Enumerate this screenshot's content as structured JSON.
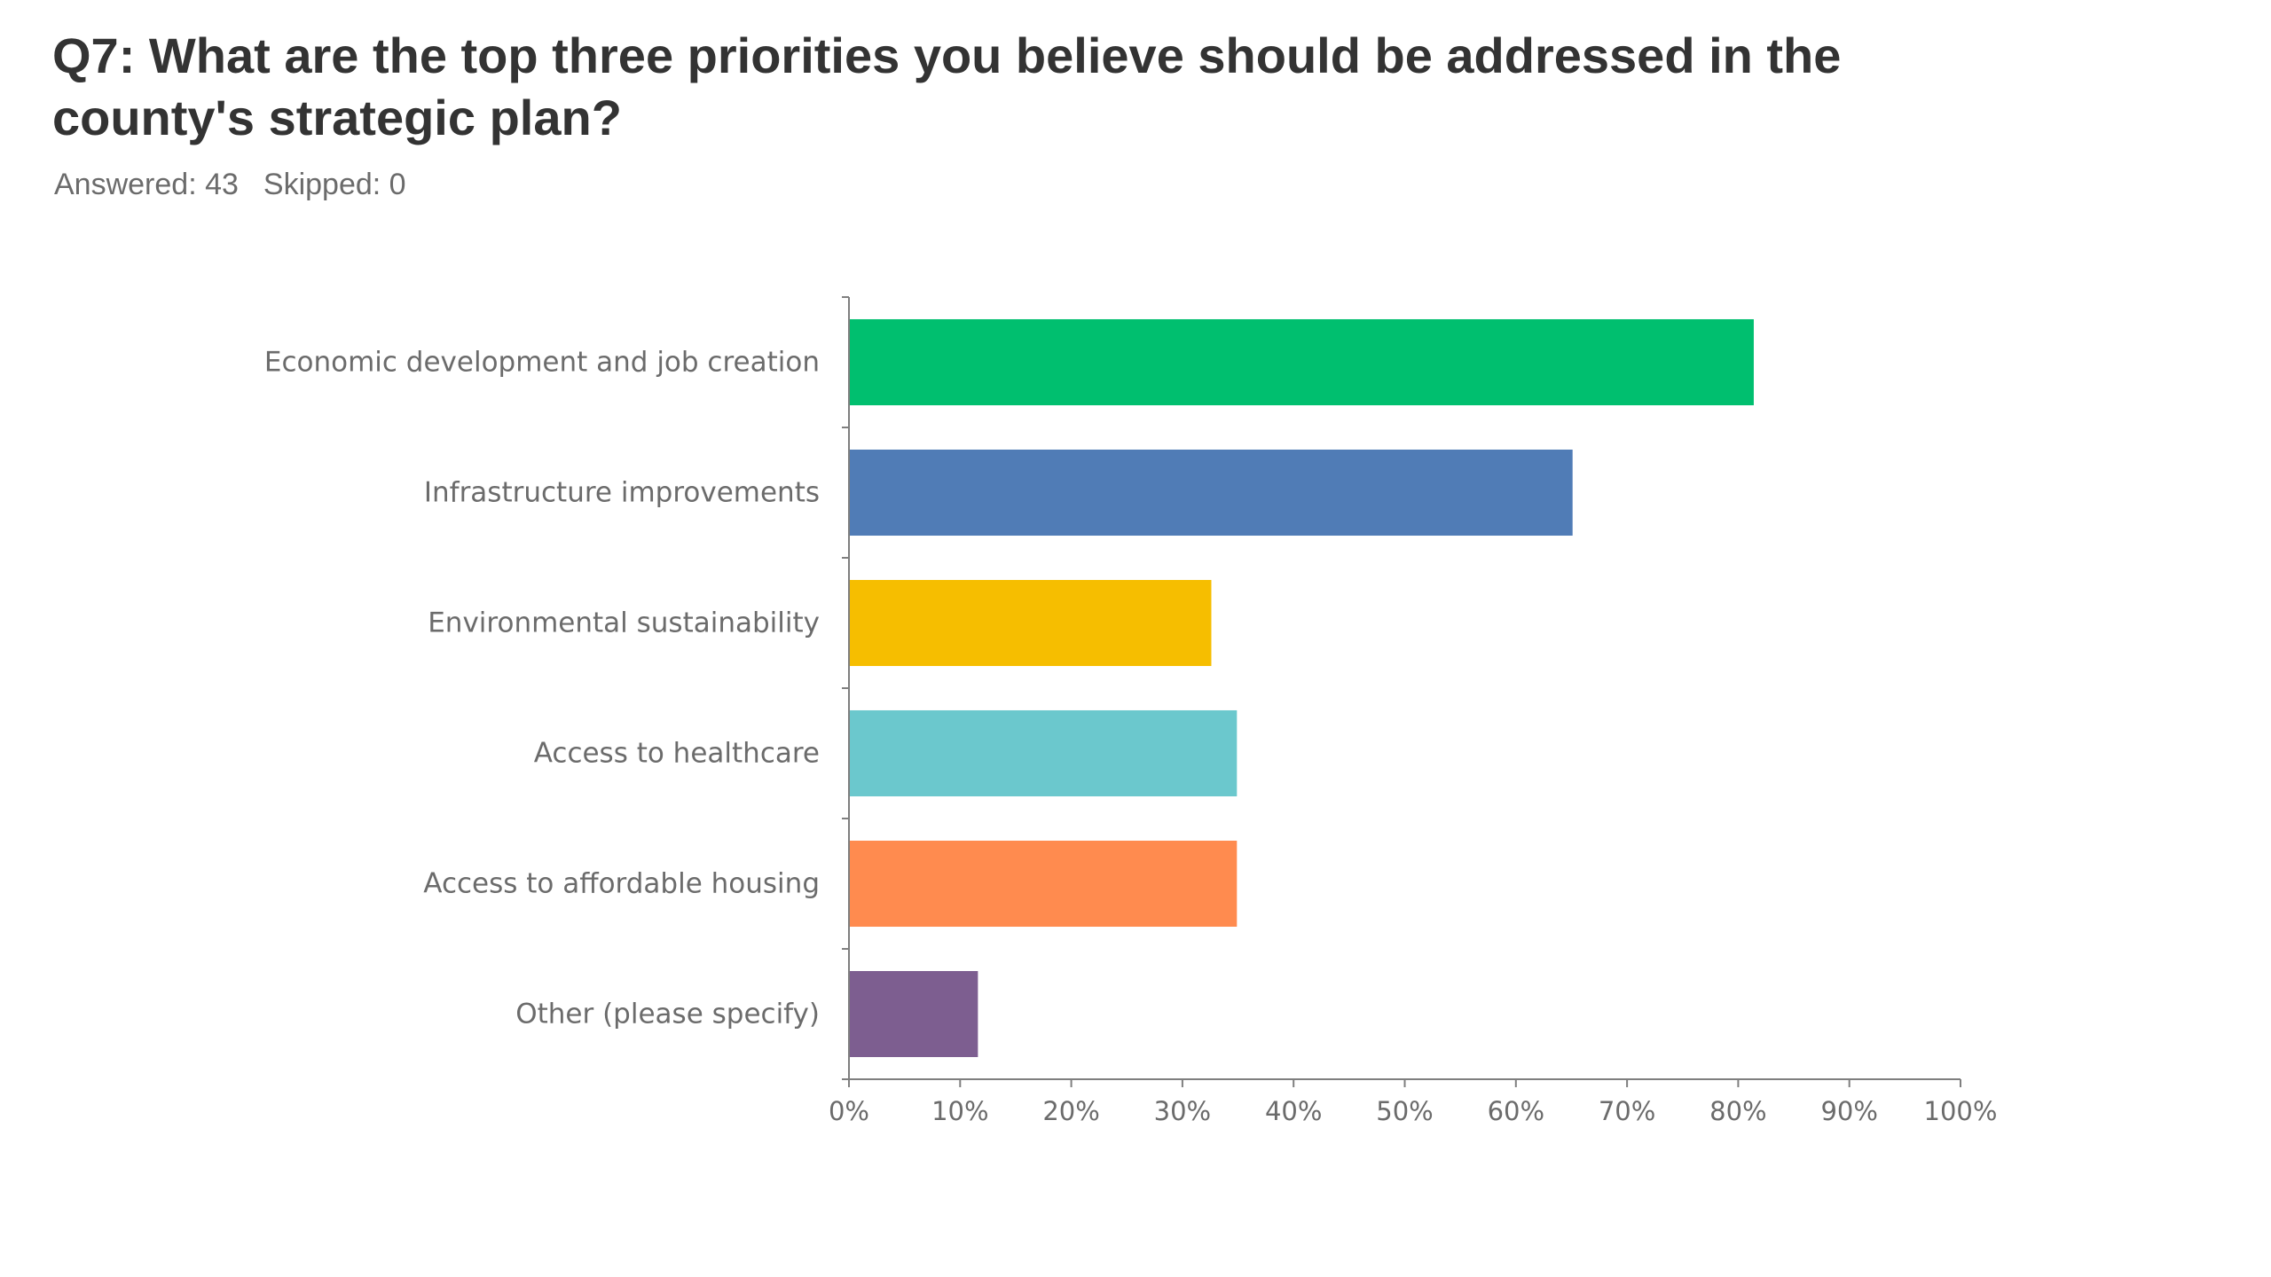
{
  "question": {
    "title": "Q7: What are the top three priorities you believe should be addressed in the county's strategic plan?",
    "answered_label": "Answered: 43",
    "skipped_label": "Skipped: 0"
  },
  "chart_data": {
    "type": "bar",
    "orientation": "horizontal",
    "categories": [
      "Economic development and job creation",
      "Infrastructure improvements",
      "Environmental sustainability",
      "Access to healthcare",
      "Access to affordable housing",
      "Other (please specify)"
    ],
    "values": [
      81.4,
      65.1,
      32.6,
      34.9,
      34.9,
      11.6
    ],
    "colors": [
      "#00bf6f",
      "#507cb6",
      "#f6be00",
      "#6bc8cd",
      "#ff8b4f",
      "#7d5e90"
    ],
    "xlim": [
      0,
      100
    ],
    "xticks": [
      "0%",
      "10%",
      "20%",
      "30%",
      "40%",
      "50%",
      "60%",
      "70%",
      "80%",
      "90%",
      "100%"
    ],
    "grid": false,
    "legend": "none",
    "title": "",
    "xlabel": "",
    "ylabel": ""
  }
}
